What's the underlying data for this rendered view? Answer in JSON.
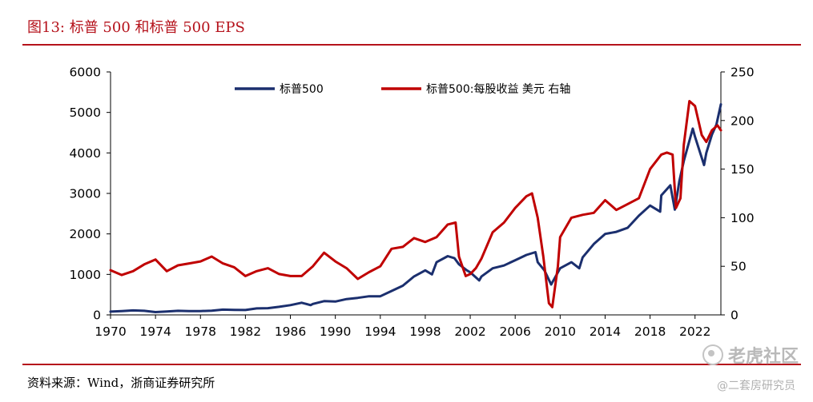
{
  "figure": {
    "title": "图13:   标普 500 和标普 500 EPS",
    "source": "资料来源：Wind，浙商证券研究所"
  },
  "watermark": {
    "brand": "老虎社区",
    "handle": "@二套房研究员",
    "icon": "tiger-community-logo-icon"
  },
  "colors": {
    "accent": "#b5121b",
    "series_index": "#1b2f6e",
    "series_eps": "#c00000"
  },
  "chart_data": {
    "type": "line",
    "grid": false,
    "legend_position": "top",
    "x_ticks": [
      1970,
      1974,
      1978,
      1982,
      1986,
      1990,
      1994,
      1998,
      2002,
      2006,
      2010,
      2014,
      2018,
      2022
    ],
    "x_tick_labels": [
      "1970",
      "1974",
      "1978",
      "1982",
      "1986",
      "1990",
      "1994",
      "1998",
      "2002",
      "2006",
      "2010",
      "2014",
      "2018",
      "2022"
    ],
    "xlim": [
      1970,
      2024.3
    ],
    "y_left": {
      "ticks": [
        0,
        1000,
        2000,
        3000,
        4000,
        5000,
        6000
      ],
      "labels": [
        "0",
        "1000",
        "2000",
        "3000",
        "4000",
        "5000",
        "6000"
      ],
      "lim": [
        0,
        6000
      ]
    },
    "y_right": {
      "ticks": [
        0,
        50,
        100,
        150,
        200,
        250
      ],
      "labels": [
        "0",
        "50",
        "100",
        "150",
        "200",
        "250"
      ],
      "lim": [
        0,
        250
      ]
    },
    "series": [
      {
        "name": "标普500",
        "axis": "left",
        "color": "#1b2f6e",
        "x": [
          1970,
          1971,
          1972,
          1973,
          1974,
          1975,
          1976,
          1977,
          1978,
          1979,
          1980,
          1981,
          1982,
          1983,
          1984,
          1985,
          1986,
          1987,
          1987.8,
          1988,
          1989,
          1990,
          1991,
          1992,
          1993,
          1994,
          1995,
          1996,
          1997,
          1998,
          1998.6,
          1999,
          2000,
          2000.6,
          2001,
          2001.7,
          2002,
          2002.8,
          2003,
          2004,
          2005,
          2006,
          2007,
          2007.8,
          2008,
          2008.6,
          2009.2,
          2009.8,
          2010,
          2011,
          2011.7,
          2012,
          2013,
          2014,
          2015,
          2016,
          2017,
          2018,
          2018.9,
          2019,
          2019.8,
          2020.2,
          2020.6,
          2021,
          2021.8,
          2022,
          2022.8,
          2023,
          2023.5,
          2023.9,
          2024.3
        ],
        "values": [
          80,
          95,
          110,
          100,
          70,
          85,
          100,
          95,
          95,
          105,
          130,
          125,
          120,
          160,
          165,
          200,
          240,
          300,
          240,
          270,
          340,
          330,
          390,
          420,
          460,
          460,
          590,
          720,
          950,
          1100,
          1000,
          1300,
          1450,
          1400,
          1250,
          1100,
          1050,
          850,
          950,
          1150,
          1220,
          1350,
          1480,
          1550,
          1300,
          1100,
          750,
          1050,
          1150,
          1300,
          1150,
          1420,
          1750,
          2000,
          2050,
          2150,
          2450,
          2700,
          2550,
          2950,
          3200,
          2600,
          3300,
          3800,
          4600,
          4400,
          3700,
          4000,
          4450,
          4700,
          5200
        ]
      },
      {
        "name": "标普500:每股收益 美元 右轴",
        "axis": "right",
        "color": "#c00000",
        "x": [
          1970,
          1971,
          1972,
          1973,
          1974,
          1975,
          1976,
          1977,
          1978,
          1979,
          1980,
          1981,
          1982,
          1983,
          1984,
          1985,
          1986,
          1987,
          1988,
          1989,
          1990,
          1991,
          1992,
          1993,
          1994,
          1995,
          1996,
          1997,
          1998,
          1999,
          2000,
          2000.7,
          2001,
          2001.6,
          2002,
          2002.5,
          2003,
          2004,
          2005,
          2006,
          2007,
          2007.5,
          2008,
          2008.5,
          2009,
          2009.3,
          2009.8,
          2010,
          2011,
          2012,
          2013,
          2014,
          2015,
          2016,
          2017,
          2018,
          2019,
          2019.5,
          2020,
          2020.3,
          2020.7,
          2021,
          2021.5,
          2022,
          2022.6,
          2023,
          2023.5,
          2024,
          2024.3
        ],
        "values": [
          46,
          41,
          45,
          52,
          57,
          45,
          51,
          53,
          55,
          60,
          53,
          49,
          40,
          45,
          48,
          42,
          40,
          40,
          50,
          64,
          55,
          48,
          37,
          44,
          50,
          68,
          70,
          79,
          75,
          80,
          93,
          95,
          60,
          40,
          42,
          48,
          58,
          85,
          95,
          110,
          122,
          125,
          100,
          60,
          12,
          8,
          50,
          80,
          100,
          103,
          105,
          118,
          108,
          114,
          120,
          150,
          165,
          167,
          165,
          110,
          120,
          175,
          220,
          215,
          185,
          178,
          190,
          195,
          190
        ]
      }
    ]
  }
}
